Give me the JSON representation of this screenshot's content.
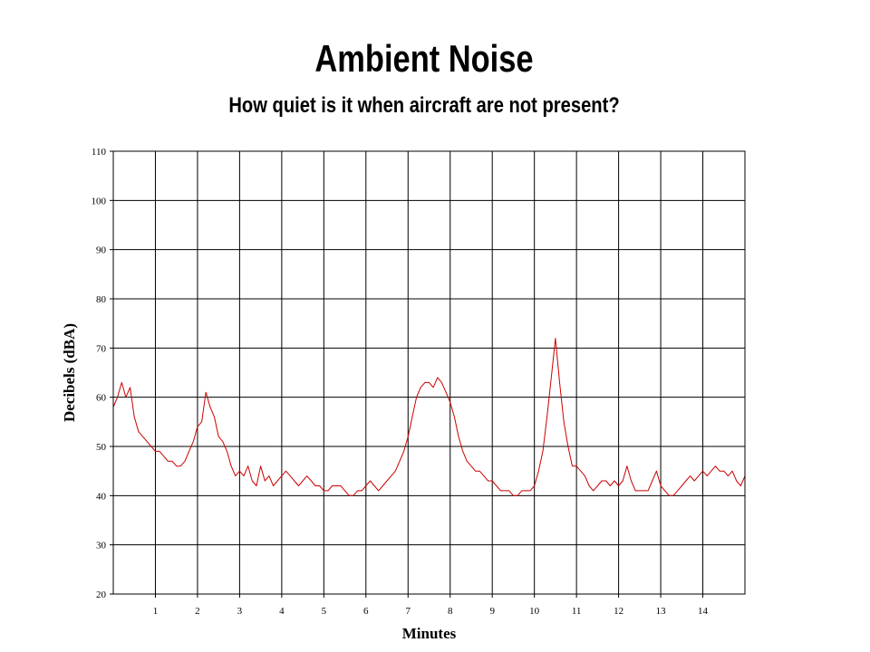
{
  "title": "Ambient Noise",
  "subtitle": "How quiet is it when aircraft are not present?",
  "chart_data": {
    "type": "line",
    "xlabel": "Minutes",
    "ylabel": "Decibels (dBA)",
    "xlim": [
      0,
      15
    ],
    "ylim": [
      20,
      110
    ],
    "x_ticks": [
      1,
      2,
      3,
      4,
      5,
      6,
      7,
      8,
      9,
      10,
      11,
      12,
      13,
      14
    ],
    "y_ticks": [
      20,
      30,
      40,
      50,
      60,
      70,
      80,
      90,
      100,
      110
    ],
    "grid": true,
    "legend": "none",
    "series": [
      {
        "color": "#cc0000",
        "x": [
          0.0,
          0.1,
          0.2,
          0.3,
          0.4,
          0.5,
          0.6,
          0.7,
          0.8,
          0.9,
          1.0,
          1.1,
          1.2,
          1.3,
          1.4,
          1.5,
          1.6,
          1.7,
          1.8,
          1.9,
          2.0,
          2.1,
          2.2,
          2.3,
          2.4,
          2.5,
          2.6,
          2.7,
          2.8,
          2.9,
          3.0,
          3.1,
          3.2,
          3.3,
          3.4,
          3.5,
          3.6,
          3.7,
          3.8,
          3.9,
          4.0,
          4.1,
          4.2,
          4.3,
          4.4,
          4.5,
          4.6,
          4.7,
          4.8,
          4.9,
          5.0,
          5.1,
          5.2,
          5.3,
          5.4,
          5.5,
          5.6,
          5.7,
          5.8,
          5.9,
          6.0,
          6.1,
          6.2,
          6.3,
          6.4,
          6.5,
          6.6,
          6.7,
          6.8,
          6.9,
          7.0,
          7.1,
          7.2,
          7.3,
          7.4,
          7.5,
          7.6,
          7.7,
          7.8,
          7.9,
          8.0,
          8.1,
          8.2,
          8.3,
          8.4,
          8.5,
          8.6,
          8.7,
          8.8,
          8.9,
          9.0,
          9.1,
          9.2,
          9.3,
          9.4,
          9.5,
          9.6,
          9.7,
          9.8,
          9.9,
          10.0,
          10.1,
          10.2,
          10.3,
          10.4,
          10.5,
          10.6,
          10.7,
          10.8,
          10.9,
          11.0,
          11.1,
          11.2,
          11.3,
          11.4,
          11.5,
          11.6,
          11.7,
          11.8,
          11.9,
          12.0,
          12.1,
          12.2,
          12.3,
          12.4,
          12.5,
          12.6,
          12.7,
          12.8,
          12.9,
          13.0,
          13.1,
          13.2,
          13.3,
          13.4,
          13.5,
          13.6,
          13.7,
          13.8,
          13.9,
          14.0,
          14.1,
          14.2,
          14.3,
          14.4,
          14.5,
          14.6,
          14.7,
          14.8,
          14.9,
          15.0
        ],
        "values": [
          58,
          60,
          63,
          60,
          62,
          56,
          53,
          52,
          51,
          50,
          49,
          49,
          48,
          47,
          47,
          46,
          46,
          47,
          49,
          51,
          54,
          55,
          61,
          58,
          56,
          52,
          51,
          49,
          46,
          44,
          45,
          44,
          46,
          43,
          42,
          46,
          43,
          44,
          42,
          43,
          44,
          45,
          44,
          43,
          42,
          43,
          44,
          43,
          42,
          42,
          41,
          41,
          42,
          42,
          42,
          41,
          40,
          40,
          41,
          41,
          42,
          43,
          42,
          41,
          42,
          43,
          44,
          45,
          47,
          49,
          52,
          56,
          60,
          62,
          63,
          63,
          62,
          64,
          63,
          61,
          59,
          56,
          52,
          49,
          47,
          46,
          45,
          45,
          44,
          43,
          43,
          42,
          41,
          41,
          41,
          40,
          40,
          41,
          41,
          41,
          42,
          45,
          49,
          56,
          64,
          72,
          63,
          55,
          50,
          46,
          46,
          45,
          44,
          42,
          41,
          42,
          43,
          43,
          42,
          43,
          42,
          43,
          46,
          43,
          41,
          41,
          41,
          41,
          43,
          45,
          42,
          41,
          40,
          40,
          41,
          42,
          43,
          44,
          43,
          44,
          45,
          44,
          45,
          46,
          45,
          45,
          44,
          45,
          43,
          42,
          44
        ]
      }
    ]
  }
}
